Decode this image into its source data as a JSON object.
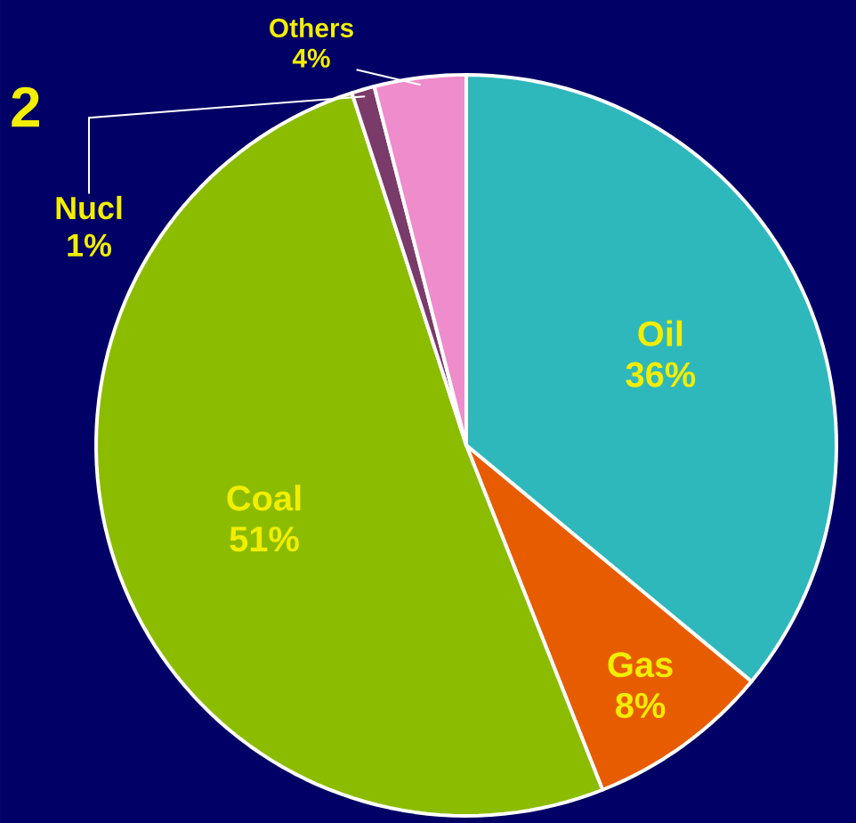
{
  "chart_data": {
    "type": "pie",
    "categories": [
      "Oil",
      "Gas",
      "Coal",
      "Nucl",
      "Others"
    ],
    "values": [
      36,
      8,
      51,
      1,
      4
    ],
    "value_labels": [
      "36%",
      "8%",
      "51%",
      "1%",
      "4%"
    ],
    "colors": [
      "#2fb8bc",
      "#e85c00",
      "#8cbc00",
      "#7a3a6a",
      "#ee8ccc"
    ],
    "annotations": [
      "2"
    ]
  }
}
